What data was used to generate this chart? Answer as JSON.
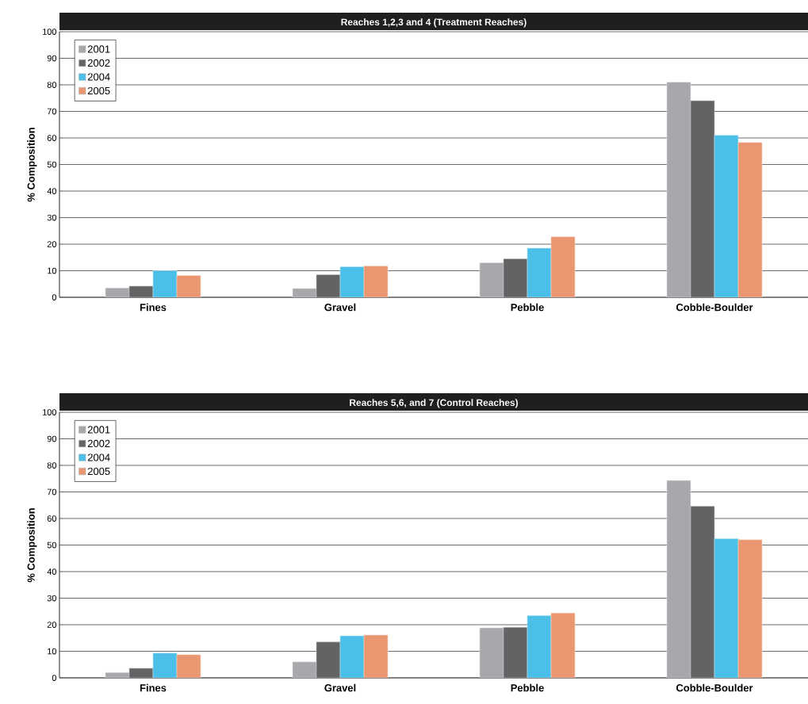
{
  "chart_data": [
    {
      "type": "bar",
      "title": "Reaches 1,2,3 and 4 (Treatment Reaches)",
      "ylabel": "% Composition",
      "categories": [
        "Fines",
        "Gravel",
        "Pebble",
        "Cobble-Boulder"
      ],
      "series": [
        {
          "name": "2001",
          "color": "#a7a8ab",
          "values": [
            3.5,
            3.3,
            13,
            81
          ]
        },
        {
          "name": "2002",
          "color": "#636365",
          "values": [
            4.2,
            8.5,
            14.5,
            74
          ]
        },
        {
          "name": "2004",
          "color": "#4bbfe8",
          "values": [
            10,
            11.5,
            18.5,
            61
          ]
        },
        {
          "name": "2005",
          "color": "#ea9670",
          "values": [
            8.2,
            11.8,
            22.8,
            58.3
          ]
        }
      ],
      "ylim": [
        0,
        100
      ],
      "yticks": [
        0,
        10,
        20,
        30,
        40,
        50,
        60,
        70,
        80,
        90,
        100
      ],
      "grid": "y",
      "legend": "top left"
    },
    {
      "type": "bar",
      "title": "Reaches 5,6, and 7 (Control Reaches)",
      "ylabel": "% Composition",
      "categories": [
        "Fines",
        "Gravel",
        "Pebble",
        "Cobble-Boulder"
      ],
      "series": [
        {
          "name": "2001",
          "color": "#a7a8ab",
          "values": [
            2,
            6,
            18.8,
            74.3
          ]
        },
        {
          "name": "2002",
          "color": "#636365",
          "values": [
            3.6,
            13.5,
            19,
            64.6
          ]
        },
        {
          "name": "2004",
          "color": "#4bbfe8",
          "values": [
            9.3,
            15.8,
            23.4,
            52.4
          ]
        },
        {
          "name": "2005",
          "color": "#ea9670",
          "values": [
            8.7,
            16.1,
            24.4,
            52
          ]
        }
      ],
      "ylim": [
        0,
        100
      ],
      "yticks": [
        0,
        10,
        20,
        30,
        40,
        50,
        60,
        70,
        80,
        90,
        100
      ],
      "grid": "y",
      "legend": "top left"
    }
  ]
}
